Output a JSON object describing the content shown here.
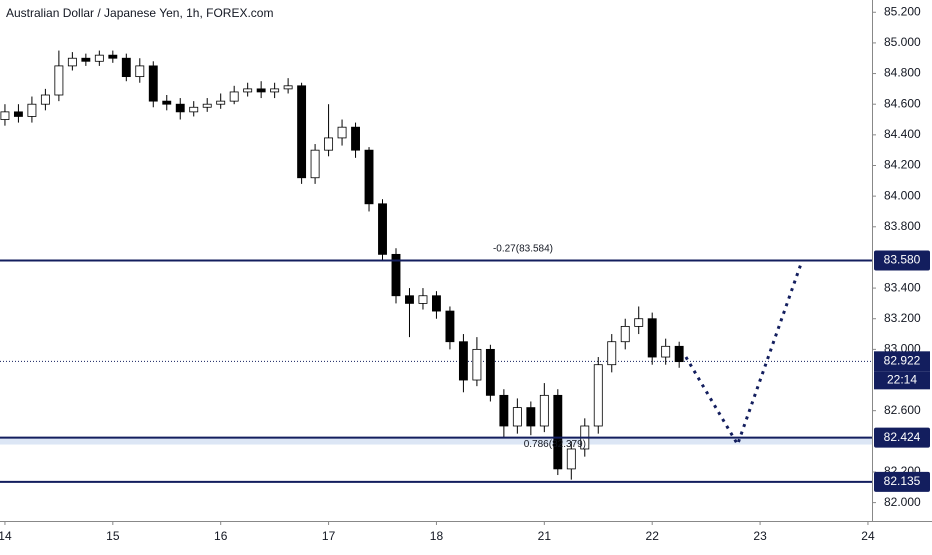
{
  "chart_data": {
    "type": "candlestick",
    "title": "Australian Dollar / Japanese Yen, 1h, FOREX.com",
    "x": [
      0,
      3,
      6,
      9,
      12,
      15,
      18,
      21,
      24,
      27,
      30,
      33,
      36,
      39,
      42,
      45,
      48,
      51,
      54,
      57,
      60,
      63,
      66,
      69,
      72,
      75,
      78,
      81,
      84,
      87,
      90,
      93,
      96,
      99,
      102,
      105,
      108,
      111,
      114,
      117,
      120,
      123,
      126,
      129,
      132,
      135,
      138,
      141,
      144,
      147,
      150
    ],
    "open": [
      84.5,
      84.55,
      84.52,
      84.6,
      84.66,
      84.85,
      84.9,
      84.88,
      84.92,
      84.9,
      84.78,
      84.85,
      84.62,
      84.6,
      84.55,
      84.58,
      84.6,
      84.62,
      84.68,
      84.7,
      84.68,
      84.7,
      84.72,
      84.12,
      84.3,
      84.38,
      84.45,
      84.3,
      83.95,
      83.62,
      83.35,
      83.3,
      83.35,
      83.25,
      83.05,
      82.8,
      83.0,
      82.7,
      82.5,
      82.62,
      82.5,
      82.7,
      82.22,
      82.35,
      82.5,
      82.9,
      83.05,
      83.15,
      83.2,
      82.95,
      83.02
    ],
    "high": [
      84.6,
      84.6,
      84.65,
      84.7,
      84.95,
      84.94,
      84.93,
      84.95,
      84.95,
      84.93,
      84.9,
      84.88,
      84.66,
      84.64,
      84.62,
      84.64,
      84.67,
      84.72,
      84.74,
      84.75,
      84.74,
      84.77,
      84.74,
      84.34,
      84.6,
      84.5,
      84.48,
      84.32,
      83.98,
      83.66,
      83.4,
      83.4,
      83.38,
      83.28,
      83.1,
      83.08,
      83.03,
      82.74,
      82.68,
      82.66,
      82.78,
      82.74,
      82.4,
      82.55,
      82.95,
      83.1,
      83.2,
      83.28,
      83.24,
      83.07,
      83.05
    ],
    "low": [
      84.46,
      84.48,
      84.48,
      84.56,
      84.62,
      84.82,
      84.85,
      84.85,
      84.87,
      84.75,
      84.74,
      84.58,
      84.56,
      84.5,
      84.52,
      84.55,
      84.57,
      84.6,
      84.65,
      84.64,
      84.64,
      84.67,
      84.08,
      84.08,
      84.26,
      84.33,
      84.25,
      83.9,
      83.58,
      83.3,
      83.08,
      83.26,
      83.2,
      83.0,
      82.72,
      82.76,
      82.66,
      82.42,
      82.45,
      82.44,
      82.46,
      82.18,
      82.15,
      82.3,
      82.45,
      82.85,
      83.0,
      83.1,
      82.9,
      82.9,
      82.88
    ],
    "close": [
      84.55,
      84.52,
      84.6,
      84.66,
      84.85,
      84.9,
      84.88,
      84.92,
      84.9,
      84.78,
      84.85,
      84.62,
      84.6,
      84.55,
      84.58,
      84.6,
      84.62,
      84.68,
      84.7,
      84.68,
      84.7,
      84.72,
      84.12,
      84.3,
      84.38,
      84.45,
      84.3,
      83.95,
      83.62,
      83.35,
      83.3,
      83.35,
      83.25,
      83.05,
      82.8,
      83.0,
      82.7,
      82.5,
      82.62,
      82.5,
      82.7,
      82.22,
      82.35,
      82.5,
      82.9,
      83.05,
      83.15,
      83.2,
      82.95,
      83.02,
      82.92
    ],
    "up_color": "#ffffff",
    "down_color": "#000000",
    "line_color": "#131e5e",
    "xlim": [
      -1.1,
      192.9
    ],
    "xticks": [
      {
        "value": 0,
        "label": "14"
      },
      {
        "value": 24,
        "label": "15"
      },
      {
        "value": 48,
        "label": "16"
      },
      {
        "value": 72,
        "label": "17"
      },
      {
        "value": 96,
        "label": "18"
      },
      {
        "value": 120,
        "label": "21"
      },
      {
        "value": 144,
        "label": "22"
      },
      {
        "value": 168,
        "label": "23"
      },
      {
        "value": 192,
        "label": "24"
      }
    ],
    "ylim": [
      81.88,
      85.28
    ],
    "yticks": [
      {
        "value": 82.0,
        "label": "82.000"
      },
      {
        "value": 82.2,
        "label": "82.200"
      },
      {
        "value": 82.6,
        "label": "82.600"
      },
      {
        "value": 83.0,
        "label": "83.000"
      },
      {
        "value": 83.2,
        "label": "83.200"
      },
      {
        "value": 83.4,
        "label": "83.400"
      },
      {
        "value": 83.8,
        "label": "83.800"
      },
      {
        "value": 84.0,
        "label": "84.000"
      },
      {
        "value": 84.2,
        "label": "84.200"
      },
      {
        "value": 84.4,
        "label": "84.400"
      },
      {
        "value": 84.6,
        "label": "84.600"
      },
      {
        "value": 84.8,
        "label": "84.800"
      },
      {
        "value": 85.0,
        "label": "85.000"
      },
      {
        "value": 85.2,
        "label": "85.200"
      }
    ],
    "levels": [
      {
        "value": 83.58,
        "label": "83.580"
      },
      {
        "value": 82.424,
        "label": "82.424"
      },
      {
        "value": 82.135,
        "label": "82.135"
      }
    ],
    "fib_levels": [
      {
        "value": 83.584,
        "text": "-0.27(83.584)"
      },
      {
        "value": 82.379,
        "text": "0.786(82.379)"
      }
    ],
    "current_price": {
      "value": 82.922,
      "label": "82.922",
      "time": "22:14"
    },
    "projection": {
      "x": [
        151.5,
        163,
        177
      ],
      "y": [
        82.95,
        82.38,
        83.55
      ]
    }
  }
}
